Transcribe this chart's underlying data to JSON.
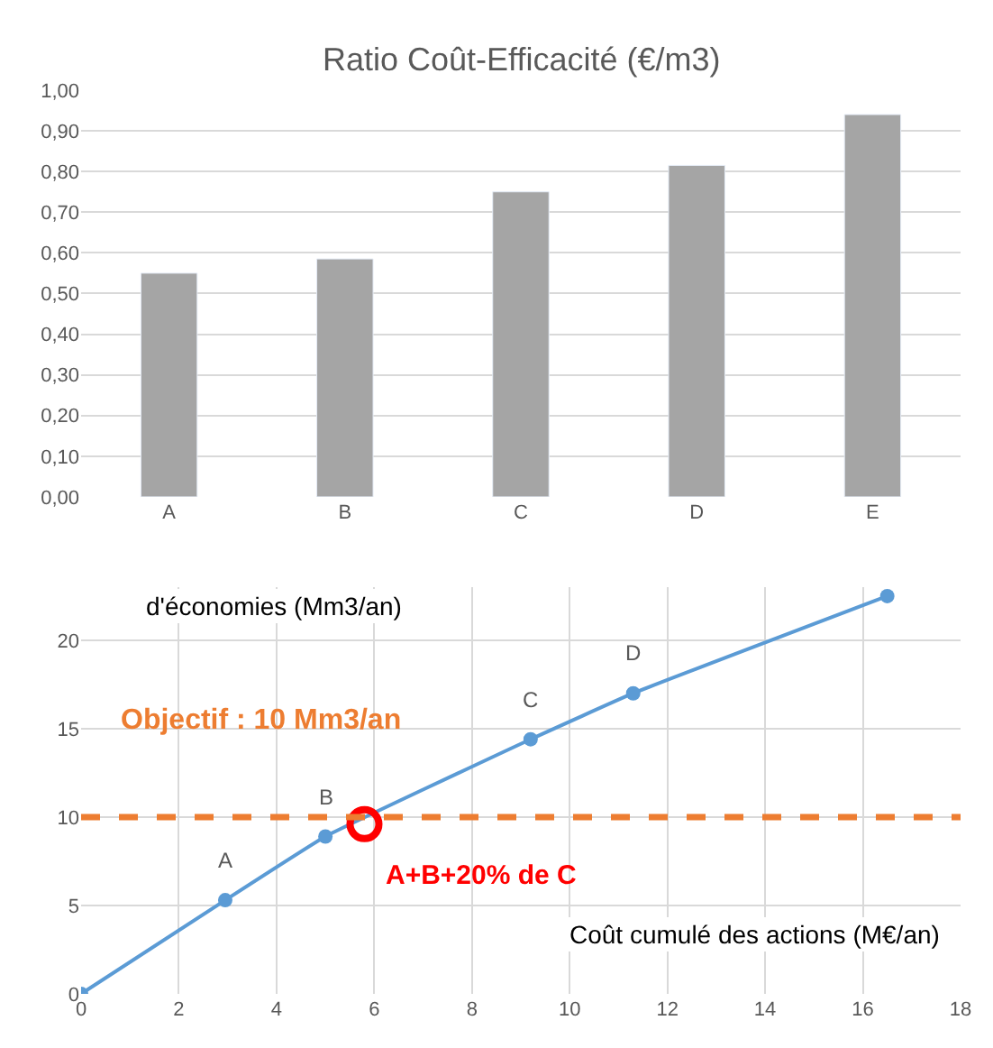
{
  "chart_data": [
    {
      "type": "bar",
      "title": "Ratio Coût-Efficacité (€/m3)",
      "categories": [
        "A",
        "B",
        "C",
        "D",
        "E"
      ],
      "values": [
        0.55,
        0.585,
        0.75,
        0.815,
        0.94
      ],
      "color": "#a5a5a5",
      "ylim": [
        0,
        1
      ],
      "yticks": [
        {
          "value": 0,
          "label": "0,00"
        },
        {
          "value": 0.1,
          "label": "0,10"
        },
        {
          "value": 0.2,
          "label": "0,20"
        },
        {
          "value": 0.3,
          "label": "0,30"
        },
        {
          "value": 0.4,
          "label": "0,40"
        },
        {
          "value": 0.5,
          "label": "0,50"
        },
        {
          "value": 0.6,
          "label": "0,60"
        },
        {
          "value": 0.7,
          "label": "0,70"
        },
        {
          "value": 0.8,
          "label": "0,80"
        },
        {
          "value": 0.9,
          "label": "0,90"
        },
        {
          "value": 1,
          "label": "1,00"
        }
      ],
      "grid": "y"
    },
    {
      "type": "line",
      "x": [
        0,
        2.95,
        5.0,
        9.2,
        11.3,
        16.5
      ],
      "series": [
        {
          "values": [
            0,
            5.3,
            8.9,
            14.4,
            17.0,
            22.5
          ],
          "color": "#5b9bd5"
        },
        {
          "type": "scatter",
          "x": [
            5.8
          ],
          "values": [
            9.6
          ],
          "color": "#ff0000"
        }
      ],
      "marker": "circle",
      "xlim": [
        0,
        18
      ],
      "xticks": [
        0,
        2,
        4,
        6,
        8,
        10,
        12,
        14,
        16,
        18
      ],
      "ylim": [
        0,
        23
      ],
      "yticks": [
        0,
        5,
        10,
        15,
        20
      ],
      "ylabel": "d'économies (Mm3/an)",
      "xlabel": "Coût cumulé des actions (M€/an)",
      "ref_lines": [
        {
          "axis": "y",
          "value": 10,
          "label": "Objectif : 10 Mm3/an",
          "color": "#ed7d31",
          "line_style": "dashed"
        }
      ],
      "annotations": [
        {
          "text": "A",
          "x": 2.95,
          "y": 5.3
        },
        {
          "text": "B",
          "x": 5.0,
          "y": 8.9
        },
        {
          "text": "C",
          "x": 9.2,
          "y": 14.4
        },
        {
          "text": "D",
          "x": 11.3,
          "y": 17.0
        },
        {
          "text": "A+B+20% de C",
          "x": 5.8,
          "y": 9.6
        }
      ],
      "grid": true
    }
  ]
}
